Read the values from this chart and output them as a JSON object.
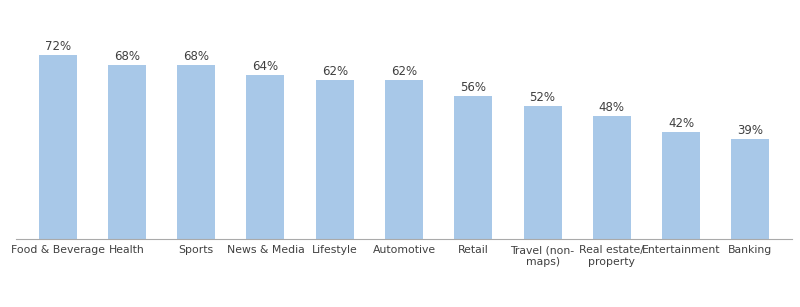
{
  "categories": [
    "Food & Beverage",
    "Health",
    "Sports",
    "News & Media",
    "Lifestyle",
    "Automotive",
    "Retail",
    "Travel (non-\nmaps)",
    "Real estate/\nproperty",
    "Entertainment",
    "Banking"
  ],
  "values": [
    72,
    68,
    68,
    64,
    62,
    62,
    56,
    52,
    48,
    42,
    39
  ],
  "bar_color": "#A8C8E8",
  "label_color": "#404040",
  "label_fontsize": 8.5,
  "tick_fontsize": 7.8,
  "background_color": "#ffffff",
  "bar_width": 0.55,
  "ylim": [
    0,
    85
  ]
}
